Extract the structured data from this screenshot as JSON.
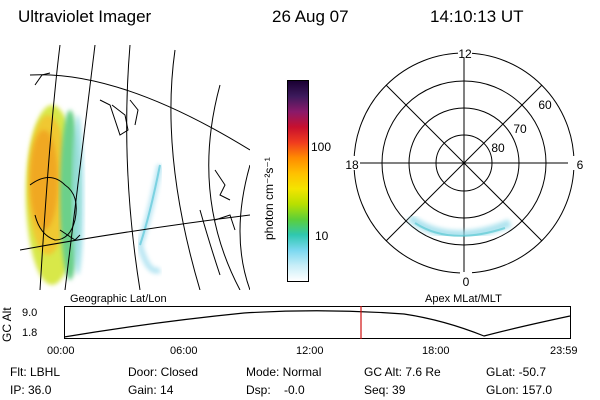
{
  "header": {
    "instrument": "Ultraviolet Imager",
    "date": "26 Aug 07",
    "time": "14:10:13 UT"
  },
  "colorbar": {
    "unit_label": "photon cm⁻²s⁻¹",
    "ticks": [
      "100",
      "10"
    ],
    "colors": [
      "#1a0033",
      "#3d1a5c",
      "#8a1a6a",
      "#c8102e",
      "#f03c1e",
      "#ff8c00",
      "#ffc000",
      "#f4e400",
      "#b8e000",
      "#5ccf3a",
      "#2fc8b0",
      "#7ad8f0",
      "#c8eef8",
      "#ffffff"
    ]
  },
  "polar_plot": {
    "mlt_labels": {
      "top": "12",
      "left": "18",
      "right": "6",
      "bottom": "0"
    },
    "lat_labels": [
      "60",
      "70",
      "80"
    ]
  },
  "map_labels": {
    "left": "Geographic Lat/Lon",
    "right": "Apex MLat/MLT"
  },
  "altitude_plot": {
    "ylabel": "GC Alt",
    "yticks": [
      "9.0",
      "1.8"
    ],
    "xticks": [
      "00:00",
      "06:00",
      "12:00",
      "18:00",
      "23:59"
    ],
    "current_time_marker": "14:10:13",
    "marker_color": "#d01010"
  },
  "status": {
    "flt": "Flt: LBHL",
    "ip": "IP: 36.0",
    "door": "Door: Closed",
    "gain": "Gain: 14",
    "mode": "Mode: Normal",
    "dsp": "Dsp:    -0.0",
    "gc_alt": "GC Alt: 7.6 Re",
    "seq": "Seq: 39",
    "glat": "GLat: -50.7",
    "glon": "GLon: 157.0"
  }
}
